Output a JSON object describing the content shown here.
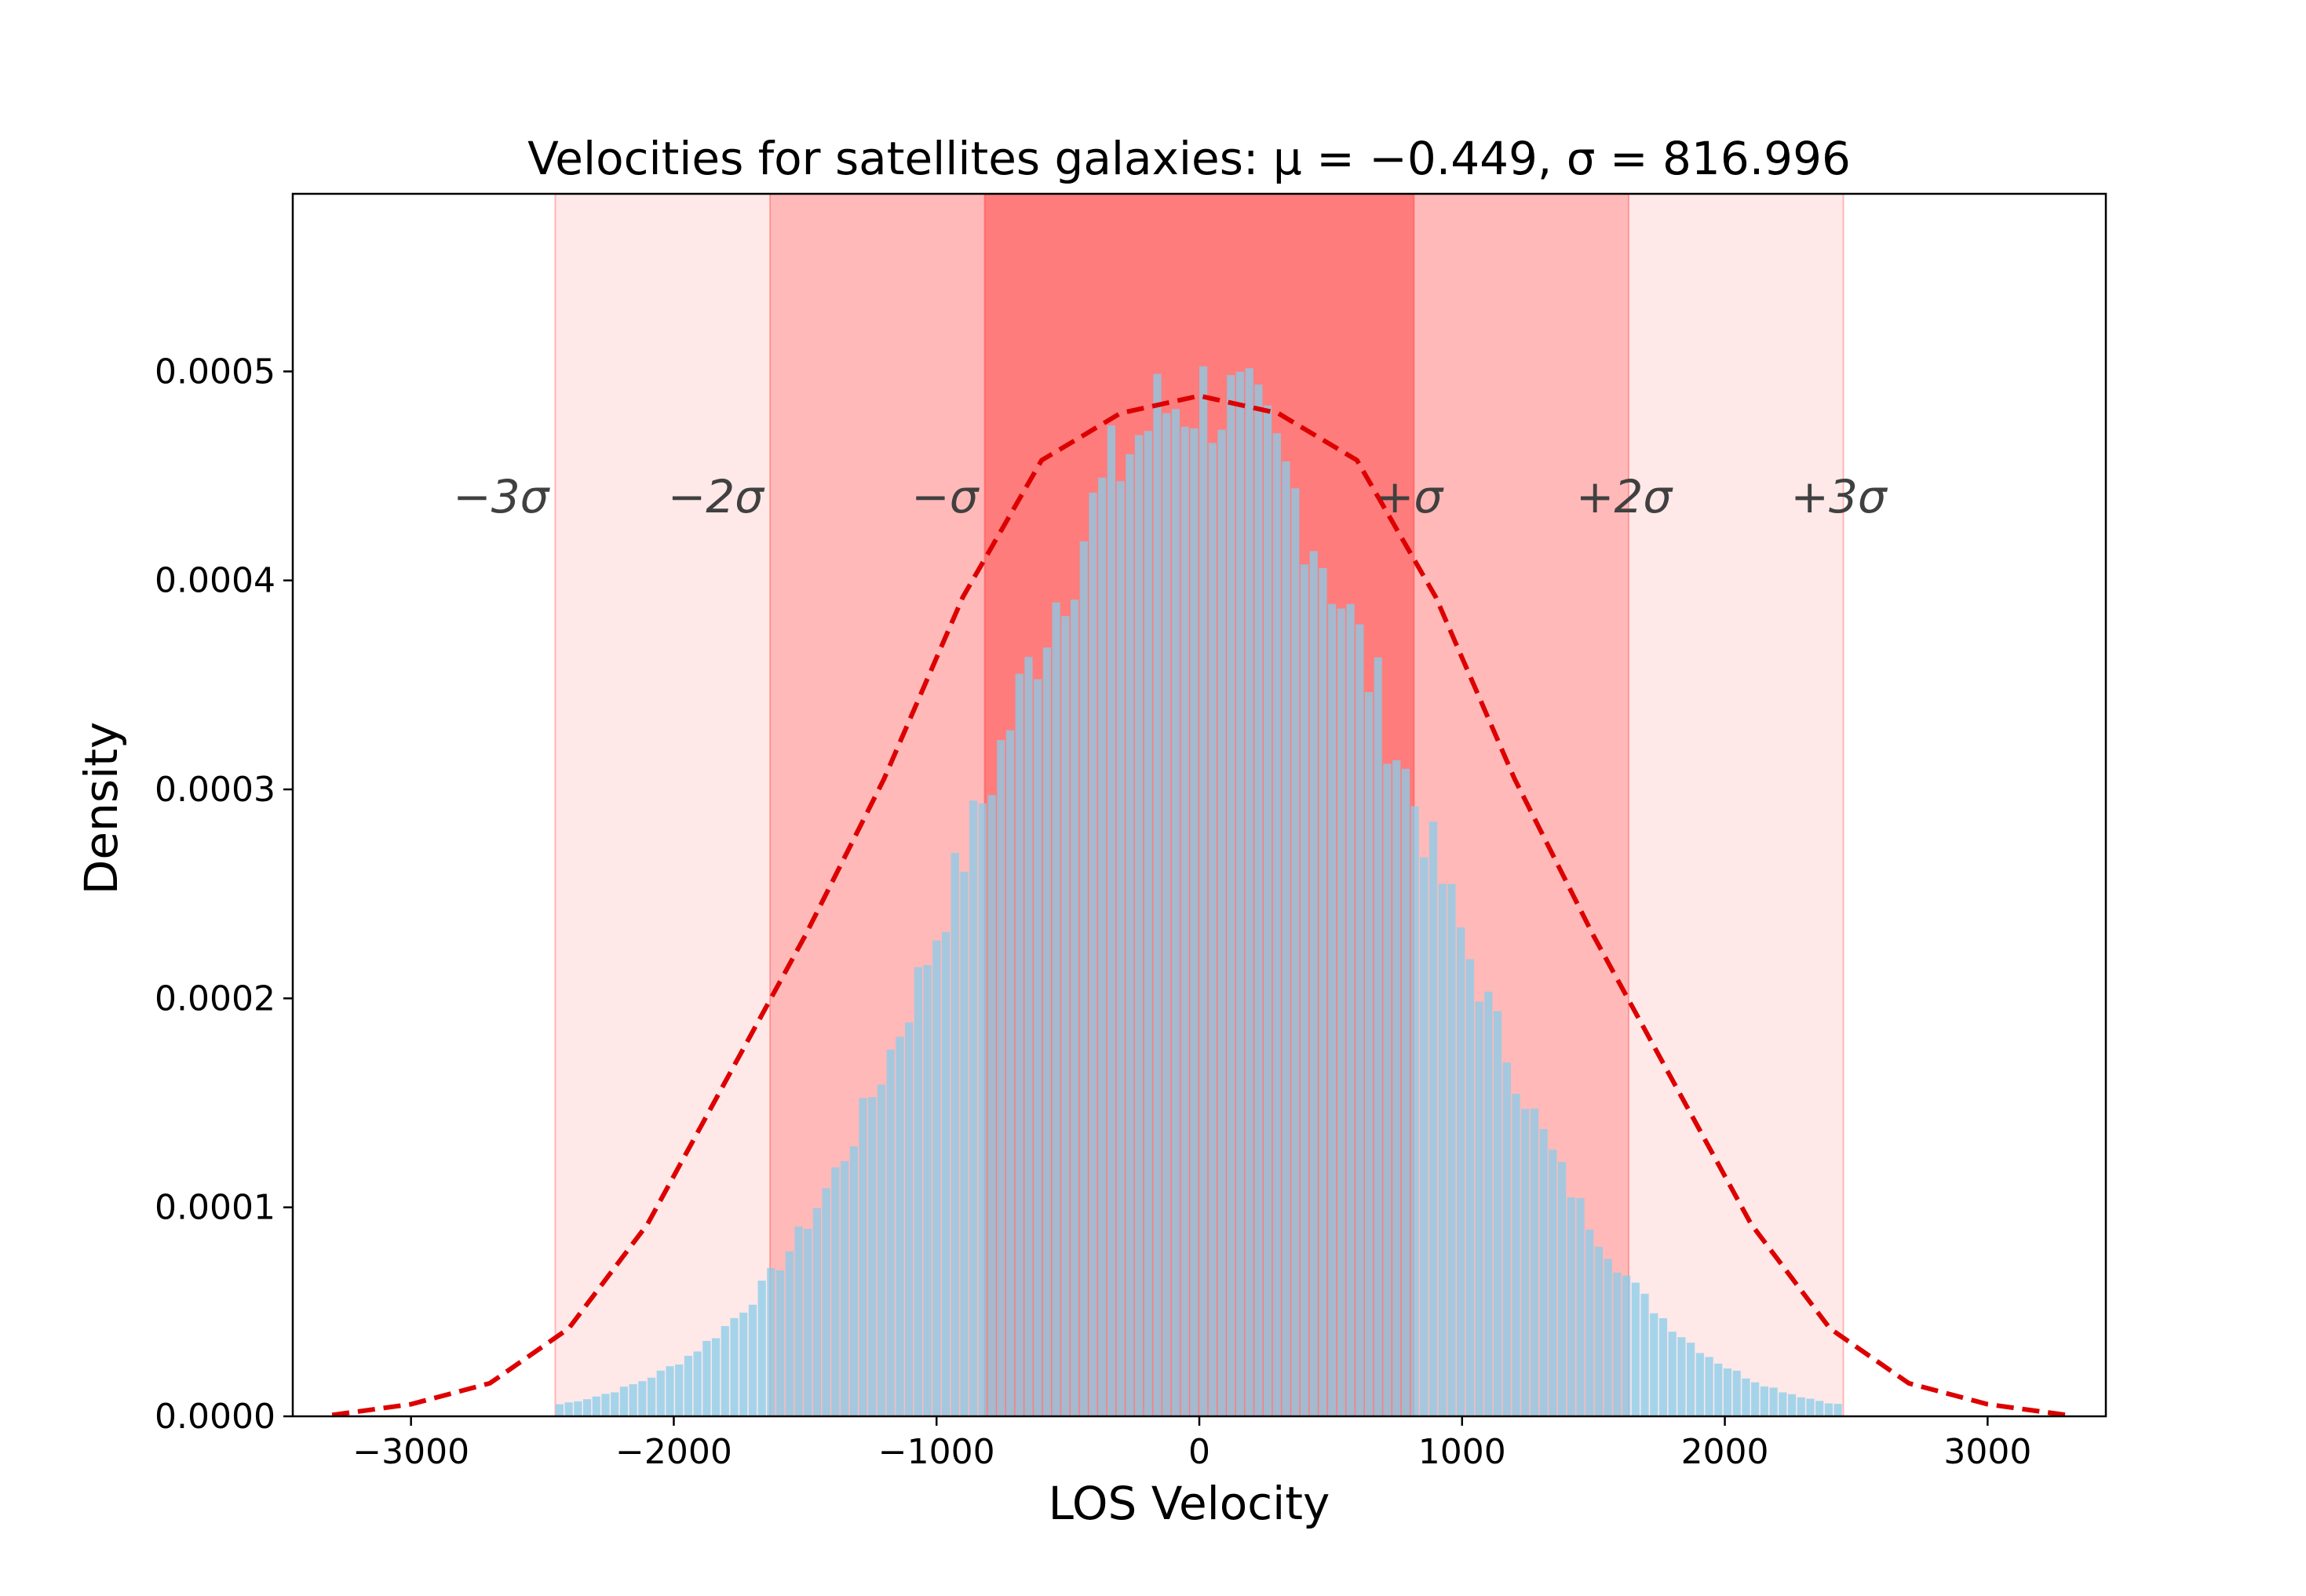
{
  "chart_data": {
    "type": "bar",
    "title": "Velocities for satellites galaxies",
    "title_stats": "μ = −0.449,  σ = 816.996",
    "xlabel": "LOS Velocity",
    "ylabel": "Density",
    "mu": -0.449,
    "sigma": 816.996,
    "xlim": [
      -3450,
      3450
    ],
    "ylim": [
      0,
      0.000585
    ],
    "xticks": [
      -3000,
      -2000,
      -1000,
      0,
      1000,
      2000,
      3000
    ],
    "xtick_labels": [
      "−3000",
      "−2000",
      "−1000",
      "0",
      "1000",
      "2000",
      "3000"
    ],
    "yticks": [
      0,
      0.0001,
      0.0002,
      0.0003,
      0.0004,
      0.0005
    ],
    "ytick_labels": [
      "0.0000",
      "0.0001",
      "0.0002",
      "0.0003",
      "0.0004",
      "0.0005"
    ],
    "sigma_bands": [
      {
        "from": -816.996,
        "to": 816.996,
        "label_left": "−σ",
        "label_right": "+σ",
        "color": "#ff0000",
        "opacity": 0.33
      },
      {
        "from": -1633.992,
        "to": 1633.992,
        "label_left": "−2σ",
        "label_right": "+2σ",
        "color": "#ff0000",
        "opacity": 0.2
      },
      {
        "from": -2450.988,
        "to": 2450.988,
        "label_left": "−3σ",
        "label_right": "+3σ",
        "color": "#ff0000",
        "opacity": 0.09
      }
    ],
    "sigma_label_y": 0.00044,
    "histogram": {
      "bin_edges_start": -2450,
      "bin_width": 35,
      "bin_count": 140,
      "color": "#87ceeb",
      "opacity": 0.75,
      "note_values": "density follows normal pdf with mean mu and std sigma, with small noise"
    },
    "fit_curve": {
      "type": "line",
      "style": "dashed",
      "color": "#dd0000",
      "x": [
        -3300,
        -3000,
        -2700,
        -2400,
        -2100,
        -1800,
        -1500,
        -1200,
        -900,
        -600,
        -300,
        0,
        300,
        600,
        900,
        1200,
        1500,
        1800,
        2100,
        2400,
        2700,
        3000,
        3300
      ],
      "y": [
        6e-07,
        5.8e-06,
        1.58e-05,
        4.2e-05,
        9.2e-05,
        0.000161,
        0.00023,
        0.000305,
        0.000392,
        0.0004575,
        0.00048,
        0.0004883,
        0.00048,
        0.0004575,
        0.000392,
        0.000305,
        0.00023,
        0.000161,
        9.2e-05,
        4.2e-05,
        1.58e-05,
        5.8e-06,
        6e-07
      ]
    }
  }
}
